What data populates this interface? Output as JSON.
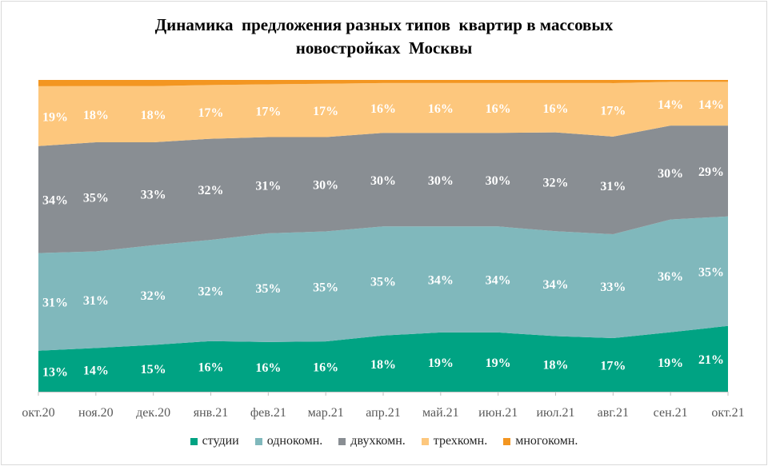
{
  "title": {
    "line1": "Динамика  предложения разных типов  квартир в массовых",
    "line2": "новостройках  Москвы"
  },
  "chart_data": {
    "type": "area",
    "stacked": "percent",
    "categories": [
      "окт.20",
      "ноя.20",
      "дек.20",
      "янв.21",
      "фев.21",
      "мар.21",
      "апр.21",
      "май.21",
      "июн.21",
      "июл.21",
      "авг.21",
      "сен.21",
      "окт.21"
    ],
    "ylim": [
      0,
      1
    ],
    "series": [
      {
        "name": "студии",
        "color": "#00A383",
        "values": [
          13,
          14,
          15,
          16,
          16,
          16,
          18,
          19,
          19,
          18,
          17,
          19,
          21
        ],
        "labels": [
          "13%",
          "14%",
          "15%",
          "16%",
          "16%",
          "16%",
          "18%",
          "19%",
          "19%",
          "18%",
          "17%",
          "19%",
          "21%"
        ]
      },
      {
        "name": "однокомн.",
        "color": "#80B8BC",
        "values": [
          31,
          31,
          32,
          32,
          35,
          35,
          35,
          34,
          34,
          34,
          33,
          36,
          35
        ],
        "labels": [
          "31%",
          "31%",
          "32%",
          "32%",
          "35%",
          "35%",
          "35%",
          "34%",
          "34%",
          "34%",
          "33%",
          "36%",
          "35%"
        ]
      },
      {
        "name": "двухкомн.",
        "color": "#898E93",
        "values": [
          34,
          35,
          33,
          32,
          31,
          30,
          30,
          30,
          30,
          32,
          31,
          30,
          29
        ],
        "labels": [
          "34%",
          "35%",
          "33%",
          "32%",
          "31%",
          "30%",
          "30%",
          "30%",
          "30%",
          "32%",
          "31%",
          "30%",
          "29%"
        ]
      },
      {
        "name": "трехкомн.",
        "color": "#FDC77D",
        "values": [
          19,
          18,
          18,
          17,
          17,
          17,
          16,
          16,
          16,
          16,
          17,
          14,
          14
        ],
        "labels": [
          "19%",
          "18%",
          "18%",
          "17%",
          "17%",
          "17%",
          "16%",
          "16%",
          "16%",
          "16%",
          "17%",
          "14%",
          "14%"
        ]
      },
      {
        "name": "многокомн.",
        "color": "#F39621",
        "values": [
          2,
          2,
          2,
          1.6,
          1.4,
          1.2,
          1,
          1,
          1,
          1,
          1,
          0.6,
          0.6
        ],
        "labels": []
      }
    ],
    "legend_position": "bottom",
    "grid": false,
    "label_color": "#ffffff"
  }
}
